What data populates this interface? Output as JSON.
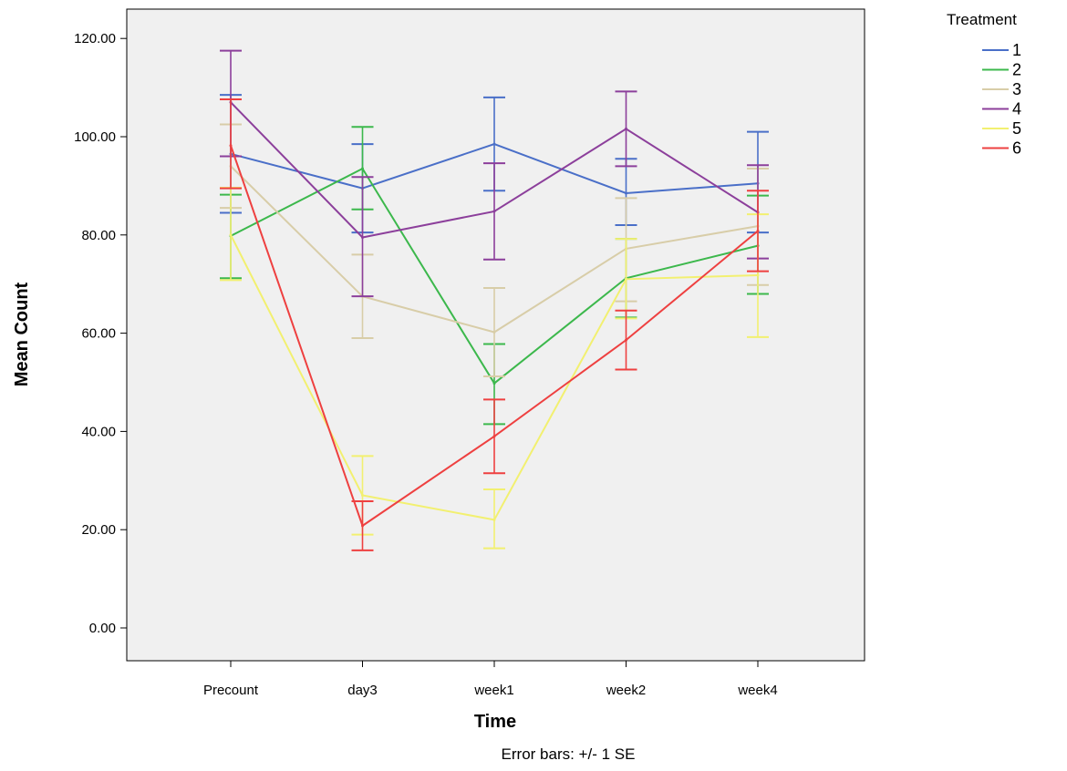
{
  "chart_data": {
    "type": "line",
    "xlabel": "Time",
    "ylabel": "Mean Count",
    "note": "Error bars: +/- 1 SE",
    "categories": [
      "Precount",
      "day3",
      "week1",
      "week2",
      "week4"
    ],
    "ylim": [
      -6,
      124
    ],
    "yticks": [
      0,
      20,
      40,
      60,
      80,
      100,
      120
    ],
    "ytick_labels": [
      "0.00",
      "20.00",
      "40.00",
      "60.00",
      "80.00",
      "100.00",
      "120.00"
    ],
    "grid": false,
    "legend": {
      "title": "Treatment",
      "position": "top-right"
    },
    "series": [
      {
        "name": "1",
        "color": "#4a6fc8",
        "values": [
          96.5,
          89.5,
          98.5,
          88.5,
          90.5
        ],
        "lower": [
          84.5,
          80.5,
          89.0,
          82.0,
          80.5
        ],
        "upper": [
          108.5,
          98.5,
          108.0,
          95.5,
          101.0
        ]
      },
      {
        "name": "2",
        "color": "#3cb84c",
        "values": [
          79.8,
          93.5,
          49.8,
          71.2,
          77.8
        ],
        "lower": [
          71.2,
          85.2,
          41.5,
          63.2,
          68.0
        ],
        "upper": [
          88.2,
          102.0,
          57.8,
          79.2,
          88.0
        ]
      },
      {
        "name": "3",
        "color": "#d8cda8",
        "values": [
          94.0,
          67.5,
          60.2,
          77.2,
          81.8
        ],
        "lower": [
          85.5,
          59.0,
          51.2,
          66.5,
          69.8
        ],
        "upper": [
          102.5,
          76.0,
          69.2,
          87.5,
          93.5
        ]
      },
      {
        "name": "4",
        "color": "#8c3f9b",
        "values": [
          107.0,
          79.5,
          84.8,
          101.6,
          84.6
        ],
        "lower": [
          96.0,
          67.5,
          75.0,
          94.0,
          75.2
        ],
        "upper": [
          117.5,
          91.8,
          94.6,
          109.2,
          94.2
        ]
      },
      {
        "name": "5",
        "color": "#f2f070",
        "values": [
          80.0,
          27.0,
          22.0,
          71.0,
          71.8
        ],
        "lower": [
          70.8,
          19.0,
          16.2,
          63.0,
          59.2
        ],
        "upper": [
          89.6,
          35.0,
          28.2,
          79.2,
          84.2
        ]
      },
      {
        "name": "6",
        "color": "#ee4040",
        "values": [
          98.2,
          20.8,
          39.0,
          58.6,
          80.8
        ],
        "lower": [
          89.5,
          15.8,
          31.5,
          52.6,
          72.6
        ],
        "upper": [
          107.6,
          25.8,
          46.5,
          64.6,
          89.0
        ]
      }
    ]
  }
}
